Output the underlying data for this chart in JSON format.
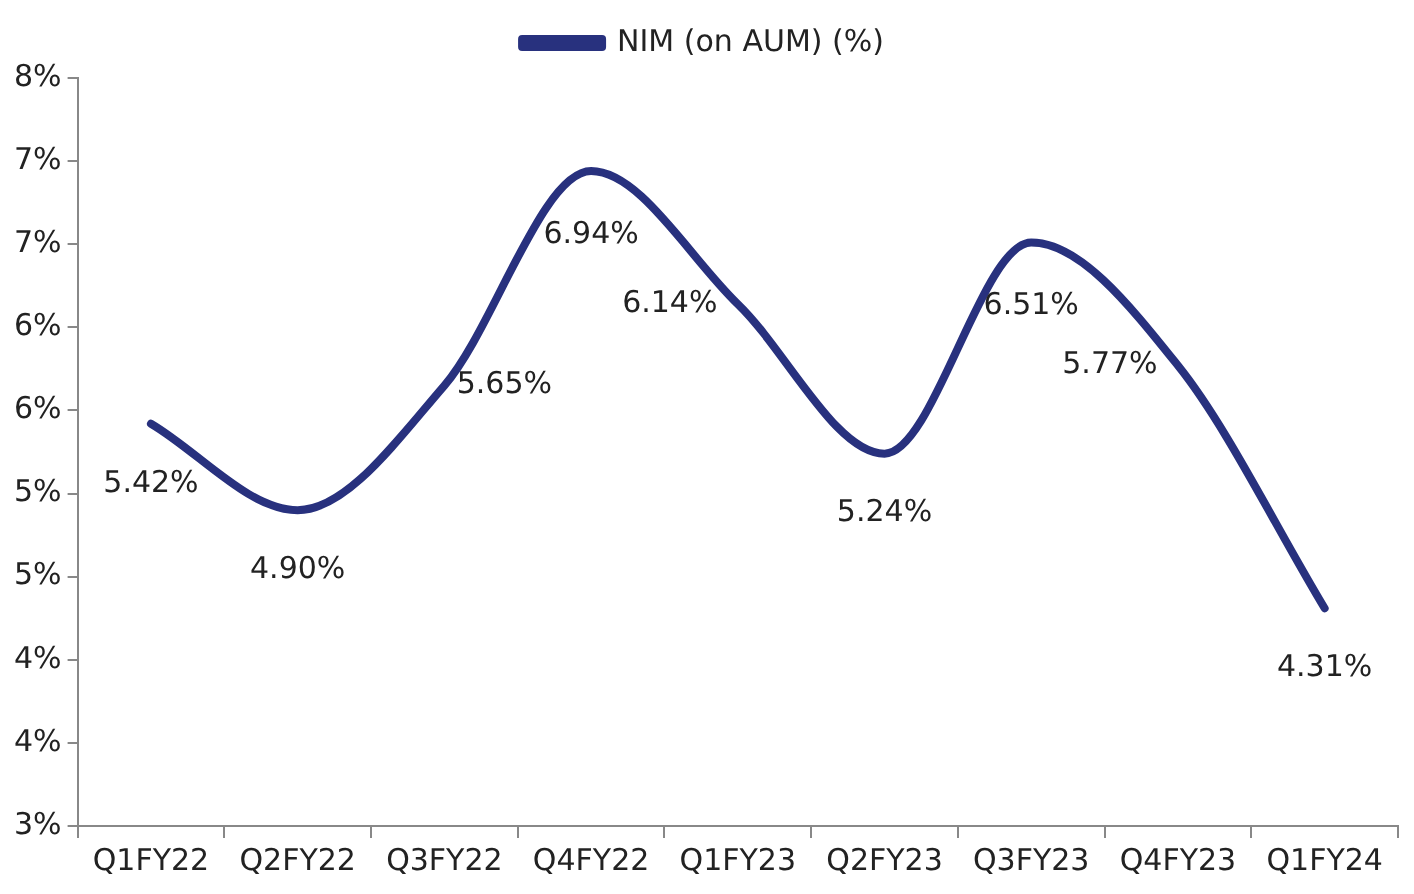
{
  "chart_data": {
    "type": "line",
    "categories": [
      "Q1FY22",
      "Q2FY22",
      "Q3FY22",
      "Q4FY22",
      "Q1FY23",
      "Q2FY23",
      "Q3FY23",
      "Q4FY23",
      "Q1FY24"
    ],
    "series": [
      {
        "name": "NIM (on AUM) (%)",
        "color": "#28317e",
        "values": [
          5.42,
          4.9,
          5.65,
          6.94,
          6.14,
          5.24,
          6.51,
          5.77,
          4.31
        ],
        "value_labels": [
          "5.42%",
          "4.90%",
          "5.65%",
          "6.94%",
          "6.14%",
          "5.24%",
          "6.51%",
          "5.77%",
          "4.31%"
        ]
      }
    ],
    "ylim": [
      3,
      7.5
    ],
    "yticks": [
      {
        "value": 3,
        "label": "3%"
      },
      {
        "value": 3.5,
        "label": "4%"
      },
      {
        "value": 4,
        "label": "4%"
      },
      {
        "value": 4.5,
        "label": "5%"
      },
      {
        "value": 5,
        "label": "5%"
      },
      {
        "value": 5.5,
        "label": "6%"
      },
      {
        "value": 6,
        "label": "6%"
      },
      {
        "value": 6.5,
        "label": "7%"
      },
      {
        "value": 7,
        "label": "7%"
      },
      {
        "value": 7.5,
        "label": "8%"
      }
    ],
    "legend": "top",
    "grid": false,
    "marker": "none",
    "line_style": "solid"
  }
}
